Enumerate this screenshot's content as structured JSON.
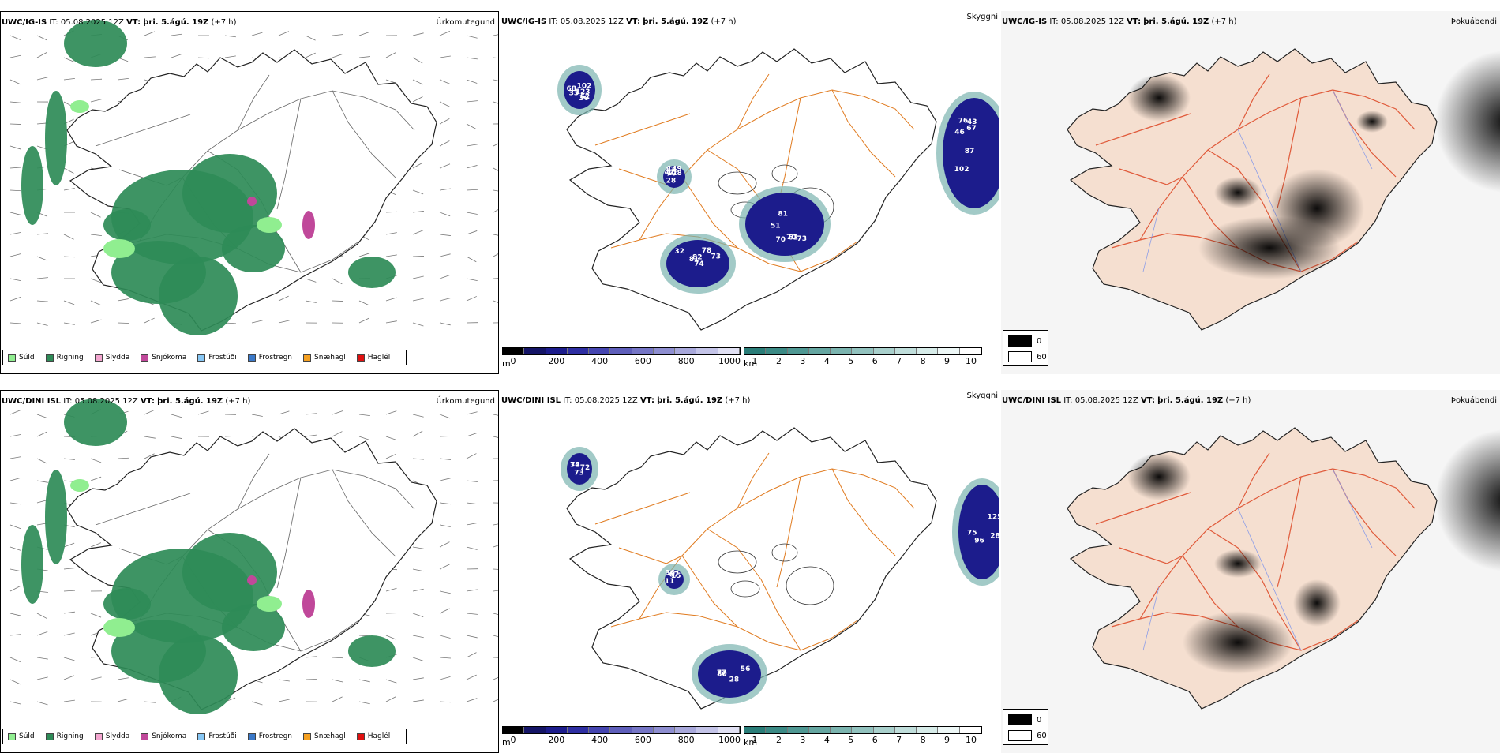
{
  "rows": [
    {
      "model": "UWC/IG-IS",
      "init_label": "IT:",
      "init": "05.08.2025 12Z",
      "valid_label": "VT:",
      "valid": "þri. 5.ágú. 19Z",
      "lead": "(+7 h)",
      "visibility_labels": [
        "102",
        "70",
        "74",
        "68",
        "82",
        "76",
        "70",
        "81",
        "33",
        "128",
        "67",
        "73",
        "78",
        "123",
        "149",
        "87",
        "81",
        "82",
        "62",
        "42",
        "46",
        "51",
        "32",
        "30",
        "28",
        "43",
        "62",
        "73",
        "102",
        "70"
      ]
    },
    {
      "model": "UWC/DINI ISL",
      "init_label": "IT:",
      "init": "05.08.2025 12Z",
      "valid_label": "VT:",
      "valid": "þri. 5.ágú. 19Z",
      "lead": "(+7 h)",
      "visibility_labels": [
        "96",
        "80",
        "72",
        "67",
        "75",
        "77",
        "34",
        "11",
        "125",
        "56",
        "73",
        "36",
        "28",
        "28",
        "73",
        "15"
      ]
    }
  ],
  "panels": {
    "precip": {
      "name": "Úrkomutegund"
    },
    "visibility": {
      "name": "Skyggni"
    },
    "fog": {
      "name": "Þokuábendi"
    }
  },
  "precip_legend": [
    {
      "label": "Súld",
      "color": "#90ee90"
    },
    {
      "label": "Rigning",
      "color": "#2e8b57"
    },
    {
      "label": "Slydda",
      "color": "#f4a6d0"
    },
    {
      "label": "Snjókoma",
      "color": "#c0489a"
    },
    {
      "label": "Frostúði",
      "color": "#87c7f5"
    },
    {
      "label": "Frostregn",
      "color": "#3a78c8"
    },
    {
      "label": "Snæhagl",
      "color": "#f5a020"
    },
    {
      "label": "Haglél",
      "color": "#e01010"
    }
  ],
  "cloud_base_scale": {
    "unit": "m",
    "ticks": [
      "0",
      "200",
      "400",
      "600",
      "800",
      "1000"
    ],
    "colors": [
      "#000000",
      "#141466",
      "#1c1c8c",
      "#2e2ea2",
      "#4545b0",
      "#5e5eba",
      "#7575c5",
      "#8e8ed0",
      "#a8a8db",
      "#c4c4e8",
      "#e0e0f3"
    ]
  },
  "visibility_scale": {
    "unit": "km",
    "ticks": [
      "1",
      "2",
      "3",
      "4",
      "5",
      "6",
      "7",
      "8",
      "9",
      "10"
    ],
    "colors": [
      "#2a7d78",
      "#3b8a85",
      "#4f9893",
      "#65a6a1",
      "#7bb4af",
      "#92c2be",
      "#a9d0cc",
      "#c0dedb",
      "#d7ece9",
      "#eef8f7",
      "#ffffff"
    ]
  },
  "fog_legend": [
    {
      "value": "0",
      "color": "#000000"
    },
    {
      "value": "60",
      "color": "#ffffff"
    }
  ]
}
